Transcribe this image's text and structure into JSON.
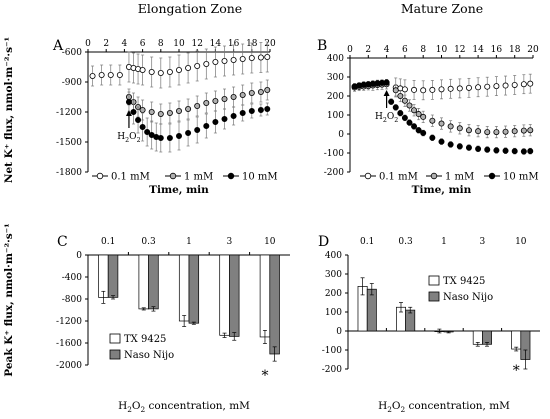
{
  "figure": {
    "col_titles": [
      "Elongation Zone",
      "Mature Zone"
    ],
    "stimulus_label": "H₂O₂"
  },
  "chart_data": [
    {
      "panel": "A",
      "type": "line",
      "title": "Elongation Zone",
      "xlabel": "Time, min",
      "ylabel": "Net K⁺ flux, nmol·m⁻²·s⁻¹",
      "xlim": [
        0,
        20
      ],
      "xticks": [
        0,
        2,
        4,
        6,
        8,
        10,
        12,
        14,
        16,
        18,
        20
      ],
      "ylim": [
        -1800,
        -600
      ],
      "yticks": [
        -600,
        -900,
        -1200,
        -1500,
        -1800
      ],
      "axis_position": "top",
      "grid": false,
      "legend_position": "bottom",
      "annotation": {
        "text": "H₂O₂",
        "x": 4.5
      },
      "series": [
        {
          "name": "0.1 mM",
          "marker": "open-circle",
          "x": [
            0.5,
            1.5,
            2.5,
            3.5,
            4.5,
            5.0,
            5.5,
            6.0,
            7.0,
            8.0,
            9.0,
            10.0,
            11.0,
            12.0,
            13.0,
            14.0,
            15.0,
            16.0,
            17.0,
            18.0,
            19.0,
            19.7
          ],
          "y": [
            -840,
            -830,
            -830,
            -830,
            -750,
            -760,
            -770,
            -780,
            -800,
            -810,
            -800,
            -780,
            -760,
            -740,
            -720,
            -700,
            -690,
            -680,
            -670,
            -660,
            -655,
            -650
          ],
          "err": [
            100,
            100,
            100,
            100,
            150,
            150,
            150,
            150,
            150,
            150,
            150,
            150,
            150,
            150,
            150,
            150,
            150,
            150,
            150,
            150,
            150,
            150
          ]
        },
        {
          "name": "1 mM",
          "marker": "grey-circle",
          "x": [
            4.5,
            5.0,
            5.5,
            6.0,
            7.0,
            8.0,
            9.0,
            10.0,
            11.0,
            12.0,
            13.0,
            14.0,
            15.0,
            16.0,
            17.0,
            18.0,
            19.0,
            19.7
          ],
          "y": [
            -1050,
            -1100,
            -1150,
            -1180,
            -1200,
            -1220,
            -1210,
            -1190,
            -1170,
            -1140,
            -1110,
            -1090,
            -1070,
            -1050,
            -1030,
            -1010,
            -1000,
            -980
          ],
          "err": [
            80,
            90,
            100,
            100,
            100,
            100,
            100,
            100,
            100,
            100,
            100,
            100,
            100,
            100,
            100,
            100,
            100,
            100
          ]
        },
        {
          "name": "10 mM",
          "marker": "filled-circle",
          "x": [
            4.5,
            5.0,
            5.5,
            6.0,
            6.5,
            7.0,
            7.5,
            8.0,
            9.0,
            10.0,
            11.0,
            12.0,
            13.0,
            14.0,
            15.0,
            16.0,
            17.0,
            18.0,
            19.0,
            19.7
          ],
          "y": [
            -1100,
            -1200,
            -1280,
            -1350,
            -1400,
            -1430,
            -1450,
            -1460,
            -1460,
            -1440,
            -1410,
            -1380,
            -1340,
            -1300,
            -1270,
            -1240,
            -1210,
            -1190,
            -1180,
            -1170
          ],
          "err": [
            100,
            120,
            130,
            140,
            140,
            140,
            140,
            140,
            140,
            140,
            130,
            130,
            120,
            110,
            100,
            90,
            80,
            70,
            60,
            60
          ]
        }
      ]
    },
    {
      "panel": "B",
      "type": "line",
      "title": "Mature Zone",
      "xlabel": "Time, min",
      "ylabel": "",
      "xlim": [
        0,
        20
      ],
      "xticks": [
        0,
        2,
        4,
        6,
        8,
        10,
        12,
        14,
        16,
        18,
        20
      ],
      "ylim": [
        -200,
        400
      ],
      "yticks": [
        400,
        300,
        200,
        100,
        0,
        -100,
        -200
      ],
      "axis_position": "top",
      "grid": false,
      "legend_position": "bottom",
      "annotation": {
        "text": "H₂O₂",
        "x": 4.0
      },
      "series": [
        {
          "name": "0.1 mM",
          "marker": "open-circle",
          "x": [
            0.5,
            1.0,
            1.5,
            2.0,
            2.5,
            3.0,
            3.5,
            4.0,
            5.0,
            5.5,
            6.0,
            7.0,
            8.0,
            9.0,
            10.0,
            11.0,
            12.0,
            13.0,
            14.0,
            15.0,
            16.0,
            17.0,
            18.0,
            19.0,
            19.7
          ],
          "y": [
            245,
            248,
            250,
            252,
            255,
            258,
            260,
            262,
            245,
            240,
            235,
            232,
            230,
            232,
            235,
            238,
            240,
            243,
            246,
            249,
            252,
            255,
            258,
            262,
            265
          ],
          "err": [
            20,
            20,
            20,
            20,
            25,
            25,
            25,
            25,
            50,
            50,
            50,
            50,
            50,
            50,
            50,
            50,
            50,
            50,
            50,
            50,
            50,
            50,
            50,
            50,
            50
          ]
        },
        {
          "name": "1 mM",
          "marker": "grey-circle",
          "x": [
            0.5,
            1.0,
            1.5,
            2.0,
            2.5,
            3.0,
            3.5,
            4.0,
            5.0,
            5.5,
            6.0,
            6.5,
            7.0,
            7.5,
            8.0,
            9.0,
            10.0,
            11.0,
            12.0,
            13.0,
            14.0,
            15.0,
            16.0,
            17.0,
            18.0,
            19.0,
            19.7
          ],
          "y": [
            250,
            255,
            258,
            260,
            262,
            265,
            268,
            270,
            230,
            200,
            175,
            150,
            125,
            105,
            90,
            70,
            55,
            40,
            30,
            20,
            15,
            10,
            10,
            12,
            15,
            18,
            20
          ],
          "err": [
            15,
            15,
            15,
            15,
            15,
            15,
            15,
            15,
            30,
            30,
            30,
            30,
            30,
            30,
            30,
            30,
            30,
            30,
            30,
            30,
            30,
            30,
            30,
            30,
            30,
            30,
            30
          ]
        },
        {
          "name": "10 mM",
          "marker": "filled-circle",
          "x": [
            0.5,
            1.0,
            1.5,
            2.0,
            2.5,
            3.0,
            3.5,
            4.0,
            4.5,
            5.0,
            5.5,
            6.0,
            6.5,
            7.0,
            7.5,
            8.0,
            9.0,
            10.0,
            11.0,
            12.0,
            13.0,
            14.0,
            15.0,
            16.0,
            17.0,
            18.0,
            19.0,
            19.7
          ],
          "y": [
            250,
            255,
            260,
            262,
            265,
            268,
            270,
            272,
            170,
            140,
            110,
            85,
            60,
            40,
            20,
            5,
            -20,
            -40,
            -55,
            -65,
            -72,
            -78,
            -82,
            -86,
            -88,
            -90,
            -92,
            -90
          ],
          "err": [
            15,
            15,
            15,
            15,
            15,
            15,
            15,
            15,
            15,
            15,
            15,
            15,
            15,
            15,
            15,
            15,
            15,
            15,
            15,
            15,
            15,
            15,
            15,
            15,
            15,
            15,
            15,
            15
          ]
        }
      ]
    },
    {
      "panel": "C",
      "type": "bar",
      "title": "",
      "xlabel": "H₂O₂ concentration, mM",
      "ylabel": "Peak K⁺ flux, nmol·m⁻²·s⁻¹",
      "categories": [
        "0.1",
        "0.3",
        "1",
        "3",
        "10"
      ],
      "ylim": [
        -2000,
        0
      ],
      "yticks": [
        0,
        -400,
        -800,
        -1200,
        -1600,
        -2000
      ],
      "grid": false,
      "legend_position": "bottom-left",
      "significance": {
        "category": "10",
        "text": "*"
      },
      "series": [
        {
          "name": "TX 9425",
          "color": "#ffffff",
          "values": [
            -770,
            -980,
            -1200,
            -1460,
            -1490
          ],
          "err": [
            110,
            20,
            100,
            40,
            120
          ]
        },
        {
          "name": "Naso Nijo",
          "color": "#808080",
          "values": [
            -770,
            -980,
            -1240,
            -1480,
            -1800
          ],
          "err": [
            30,
            40,
            20,
            70,
            130
          ]
        }
      ]
    },
    {
      "panel": "D",
      "type": "bar",
      "title": "",
      "xlabel": "H₂O₂ concentration, mM",
      "ylabel": "",
      "categories": [
        "0.1",
        "0.3",
        "1",
        "3",
        "10"
      ],
      "ylim": [
        -200,
        400
      ],
      "yticks": [
        400,
        300,
        200,
        100,
        0,
        -100,
        -200
      ],
      "grid": false,
      "legend_position": "top-right",
      "significance": {
        "category": "10",
        "text": "*"
      },
      "series": [
        {
          "name": "TX 9425",
          "color": "#ffffff",
          "values": [
            235,
            125,
            0,
            -70,
            -95
          ],
          "err": [
            45,
            25,
            10,
            10,
            10
          ]
        },
        {
          "name": "Naso Nijo",
          "color": "#808080",
          "values": [
            220,
            110,
            -5,
            -70,
            -150
          ],
          "err": [
            30,
            15,
            5,
            10,
            50
          ]
        }
      ]
    }
  ]
}
